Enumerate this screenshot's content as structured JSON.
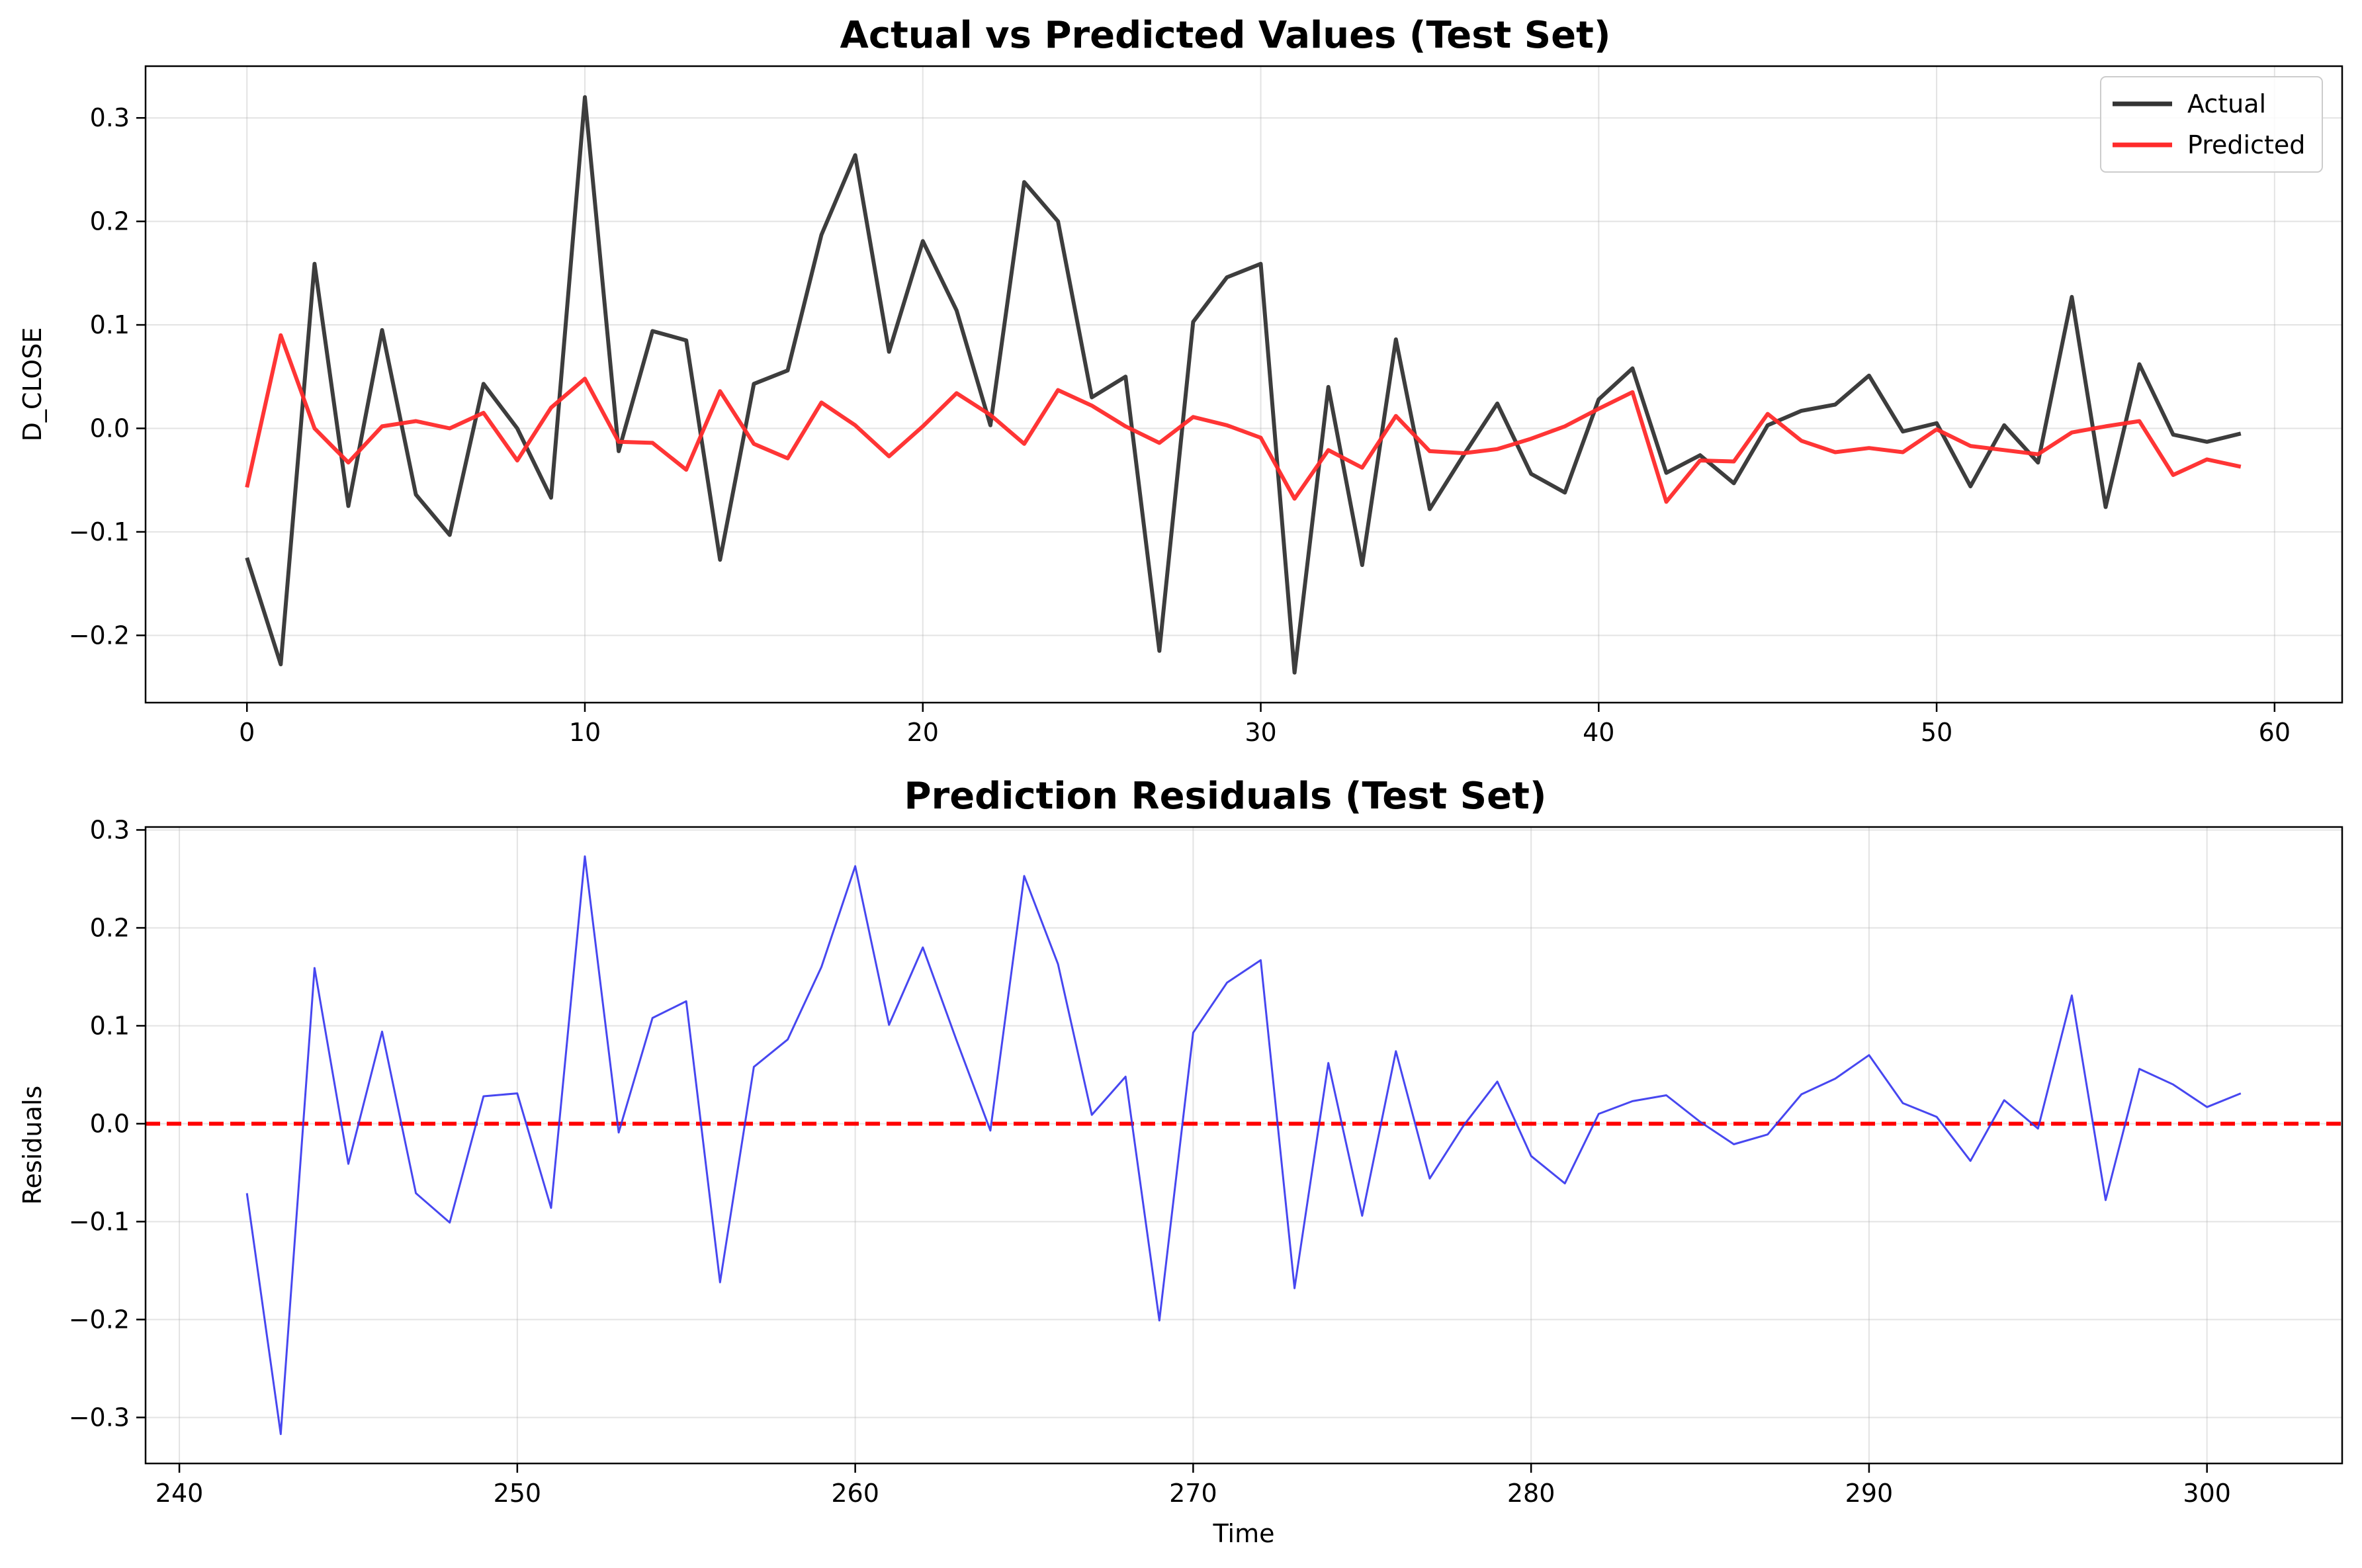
{
  "chart_data": [
    {
      "type": "line",
      "title": "Actual vs Predicted Values (Test Set)",
      "xlabel": "",
      "ylabel": "D_CLOSE",
      "xlim": [
        -3,
        62
      ],
      "ylim": [
        -0.265,
        0.35
      ],
      "xticks": [
        0,
        10,
        20,
        30,
        40,
        50,
        60
      ],
      "xtick_labels": [
        "0",
        "10",
        "20",
        "30",
        "40",
        "50",
        "60"
      ],
      "yticks": [
        -0.2,
        -0.1,
        0.0,
        0.1,
        0.2,
        0.3
      ],
      "ytick_labels": [
        "−0.2",
        "−0.1",
        "0.0",
        "0.1",
        "0.2",
        "0.3"
      ],
      "grid": true,
      "legend_position": "top-right",
      "x": [
        0,
        1,
        2,
        3,
        4,
        5,
        6,
        7,
        8,
        9,
        10,
        11,
        12,
        13,
        14,
        15,
        16,
        17,
        18,
        19,
        20,
        21,
        22,
        23,
        24,
        25,
        26,
        27,
        28,
        29,
        30,
        31,
        32,
        33,
        34,
        35,
        36,
        37,
        38,
        39,
        40,
        41,
        42,
        43,
        44,
        45,
        46,
        47,
        48,
        49,
        50,
        51,
        52,
        53,
        54,
        55,
        56,
        57,
        58,
        59
      ],
      "series": [
        {
          "name": "Actual",
          "color": "#333333",
          "values": [
            -0.125,
            -0.228,
            0.159,
            -0.075,
            0.095,
            -0.064,
            -0.103,
            0.043,
            0.0,
            -0.067,
            0.32,
            -0.022,
            0.094,
            0.085,
            -0.127,
            0.043,
            0.056,
            0.187,
            0.264,
            0.074,
            0.181,
            0.114,
            0.003,
            0.238,
            0.2,
            0.03,
            0.05,
            -0.215,
            0.103,
            0.146,
            0.159,
            -0.236,
            0.04,
            -0.132,
            0.086,
            -0.078,
            -0.026,
            0.024,
            -0.044,
            -0.062,
            0.028,
            0.058,
            -0.043,
            -0.026,
            -0.053,
            0.003,
            0.017,
            0.023,
            0.051,
            -0.003,
            0.005,
            -0.056,
            0.003,
            -0.033,
            0.127,
            -0.076,
            0.062,
            -0.006,
            -0.013,
            -0.005
          ]
        },
        {
          "name": "Predicted",
          "color": "#ff2a2a",
          "values": [
            -0.057,
            0.09,
            0.0,
            -0.033,
            0.002,
            0.007,
            0.0,
            0.015,
            -0.031,
            0.02,
            0.048,
            -0.013,
            -0.014,
            -0.04,
            0.036,
            -0.015,
            -0.029,
            0.025,
            0.003,
            -0.027,
            0.002,
            0.034,
            0.013,
            -0.015,
            0.037,
            0.022,
            0.002,
            -0.014,
            0.011,
            0.003,
            -0.009,
            -0.068,
            -0.021,
            -0.038,
            0.012,
            -0.022,
            -0.024,
            -0.02,
            -0.01,
            0.002,
            0.019,
            0.035,
            -0.071,
            -0.031,
            -0.032,
            0.014,
            -0.012,
            -0.023,
            -0.019,
            -0.023,
            -0.001,
            -0.017,
            -0.021,
            -0.025,
            -0.004,
            0.002,
            0.007,
            -0.045,
            -0.03,
            -0.037
          ]
        }
      ]
    },
    {
      "type": "line",
      "title": "Prediction Residuals (Test Set)",
      "xlabel": "Time",
      "ylabel": "Residuals",
      "xlim": [
        239,
        304
      ],
      "ylim": [
        -0.347,
        0.303
      ],
      "xticks": [
        240,
        250,
        260,
        270,
        280,
        290,
        300
      ],
      "xtick_labels": [
        "240",
        "250",
        "260",
        "270",
        "280",
        "290",
        "300"
      ],
      "yticks": [
        -0.3,
        -0.2,
        -0.1,
        0.0,
        0.1,
        0.2,
        0.3
      ],
      "ytick_labels": [
        "−0.3",
        "−0.2",
        "−0.1",
        "0.0",
        "0.1",
        "0.2",
        "0.3"
      ],
      "grid": true,
      "reference_line": {
        "y": 0.0,
        "color": "#ff0000",
        "style": "dashed"
      },
      "x": [
        242,
        243,
        244,
        245,
        246,
        247,
        248,
        249,
        250,
        251,
        252,
        253,
        254,
        255,
        256,
        257,
        258,
        259,
        260,
        261,
        262,
        263,
        264,
        265,
        266,
        267,
        268,
        269,
        270,
        271,
        272,
        273,
        274,
        275,
        276,
        277,
        278,
        279,
        280,
        281,
        282,
        283,
        284,
        285,
        286,
        287,
        288,
        289,
        290,
        291,
        292,
        293,
        294,
        295,
        296,
        297,
        298,
        299,
        300,
        301
      ],
      "series": [
        {
          "color": "#3333ee",
          "values": [
            -0.071,
            -0.317,
            0.159,
            -0.041,
            0.094,
            -0.071,
            -0.101,
            0.028,
            0.031,
            -0.086,
            0.273,
            -0.009,
            0.108,
            0.125,
            -0.162,
            0.058,
            0.086,
            0.16,
            0.263,
            0.101,
            0.18,
            0.085,
            -0.007,
            0.253,
            0.163,
            0.009,
            0.048,
            -0.201,
            0.093,
            0.144,
            0.167,
            -0.168,
            0.062,
            -0.094,
            0.074,
            -0.056,
            -0.002,
            0.043,
            -0.033,
            -0.061,
            0.01,
            0.023,
            0.029,
            0.002,
            -0.021,
            -0.011,
            0.03,
            0.046,
            0.07,
            0.021,
            0.007,
            -0.038,
            0.024,
            -0.005,
            0.131,
            -0.078,
            0.056,
            0.04,
            0.017,
            0.031
          ]
        }
      ]
    }
  ]
}
